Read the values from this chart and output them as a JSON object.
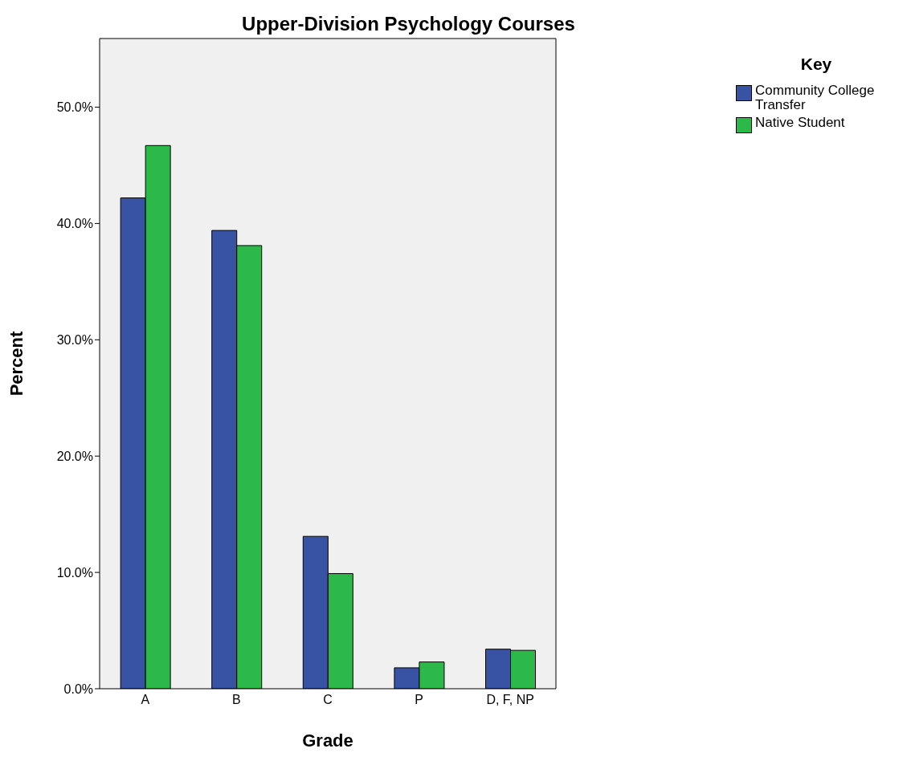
{
  "chart_data": {
    "type": "bar",
    "title": "Upper-Division Psychology Courses",
    "xlabel": "Grade",
    "ylabel": "Percent",
    "legend_title": "Key",
    "categories": [
      "A",
      "B",
      "C",
      "P",
      "D, F, NP"
    ],
    "series": [
      {
        "name": "Community College Transfer",
        "color": "#3953a4",
        "values": [
          42.2,
          39.4,
          13.1,
          1.8,
          3.4
        ]
      },
      {
        "name": "Native Student",
        "color": "#2db84a",
        "values": [
          46.7,
          38.1,
          9.9,
          2.3,
          3.3
        ]
      }
    ],
    "ylim": [
      0,
      55.9
    ],
    "yticks": [
      {
        "value": 0,
        "label": "0.0%"
      },
      {
        "value": 10,
        "label": "10.0%"
      },
      {
        "value": 20,
        "label": "20.0%"
      },
      {
        "value": 30,
        "label": "30.0%"
      },
      {
        "value": 40,
        "label": "40.0%"
      },
      {
        "value": 50,
        "label": "50.0%"
      }
    ],
    "grid": false,
    "legend": "top right"
  }
}
